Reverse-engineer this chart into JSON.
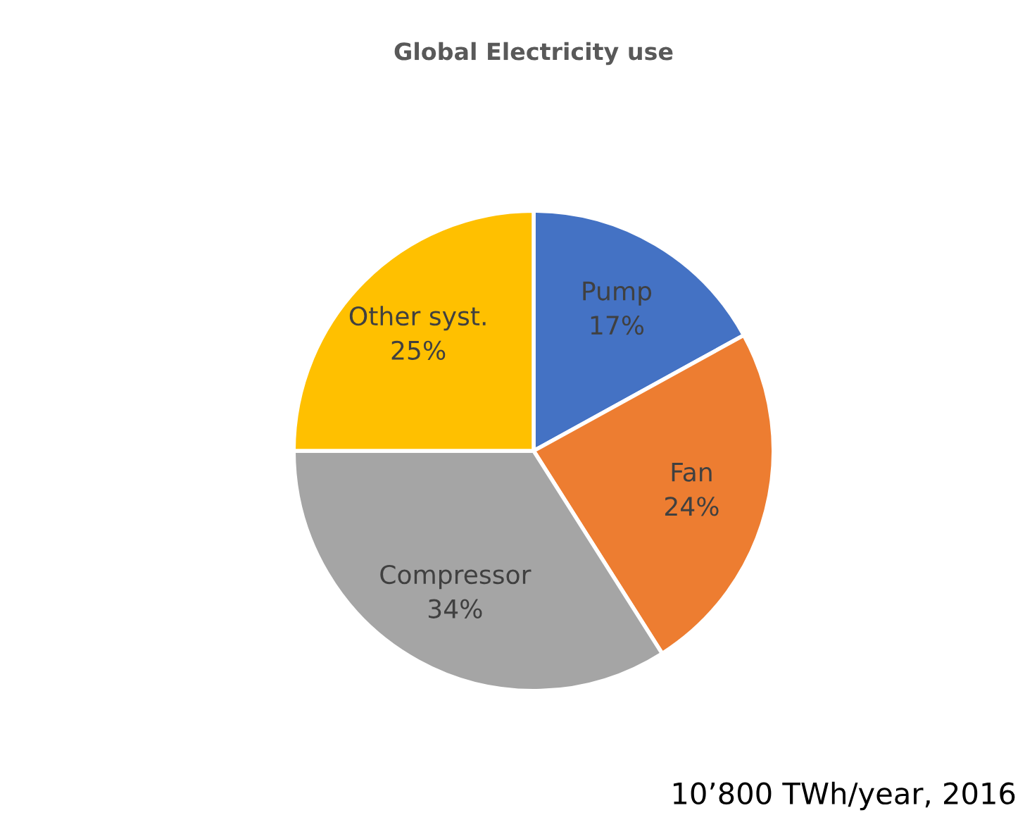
{
  "chart_data": {
    "type": "pie",
    "title": "Global Electricity use",
    "categories": [
      "Pump",
      "Fan",
      "Compressor",
      "Other syst."
    ],
    "values": [
      17,
      24,
      34,
      25
    ],
    "value_labels": [
      "17%",
      "24%",
      "34%",
      "25%"
    ],
    "colors": [
      "#4472c4",
      "#ed7d31",
      "#a5a5a5",
      "#ffc000"
    ],
    "annotations": [
      "10’800 TWh/year, 2016"
    ],
    "legend": false
  }
}
